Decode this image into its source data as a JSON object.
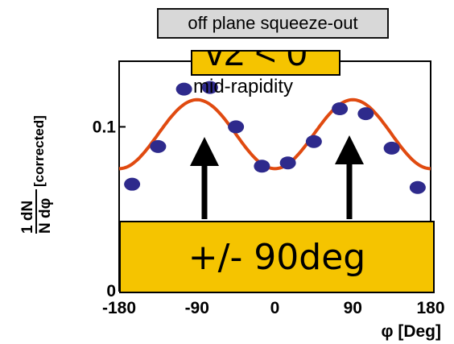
{
  "chart_data": {
    "type": "scatter",
    "xlabel": "φ [Deg]",
    "ylabel_main": "1 dN",
    "ylabel_denominator": "N dφ",
    "ylabel_sub": "[corrected]",
    "xlim": [
      -180,
      180
    ],
    "ylim": [
      0,
      0.14
    ],
    "x_ticks": [
      {
        "value": -180,
        "label": "-180"
      },
      {
        "value": -90,
        "label": "-90"
      },
      {
        "value": 0,
        "label": "0"
      },
      {
        "value": 90,
        "label": "90"
      },
      {
        "value": 180,
        "label": "180"
      }
    ],
    "y_ticks": [
      {
        "value": 0,
        "label": "0"
      },
      {
        "value": 0.1,
        "label": "0.1"
      }
    ],
    "series": [
      {
        "kind": "points",
        "color": "#2e2a8c",
        "x": [
          -165,
          -135,
          -105,
          -75,
          -45,
          -15,
          15,
          45,
          75,
          105,
          135,
          165
        ],
        "y": [
          0.065,
          0.088,
          0.123,
          0.124,
          0.1,
          0.076,
          0.078,
          0.091,
          0.111,
          0.108,
          0.087,
          0.063
        ]
      },
      {
        "kind": "fit",
        "color": "#e04a10",
        "function": "A*(1 - 2*v2*cos(2*phi))",
        "A": 0.0955,
        "v2": 0.11
      }
    ],
    "annotations": {
      "top_box": "off plane squeeze-out",
      "v2_box": "v2 < 0",
      "midrapidity": "mid-rapidity",
      "bottom_box": "+/- 90deg"
    }
  }
}
